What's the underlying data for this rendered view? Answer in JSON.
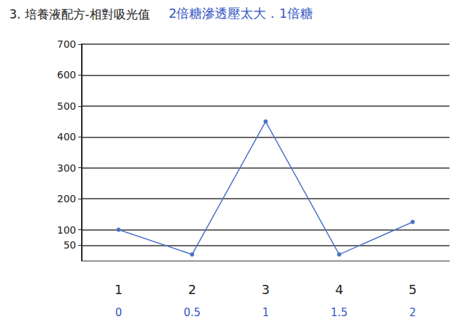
{
  "chart_data": {
    "type": "line",
    "title": "3. 培養液配方-相對吸光值",
    "annotations": [
      "2倍糖滲透壓太大．1倍糖"
    ],
    "categories": [
      "1",
      "2",
      "3",
      "4",
      "5"
    ],
    "x_sublabels": [
      "0",
      "0.5",
      "1",
      "1.5",
      "2"
    ],
    "values": [
      100,
      20,
      450,
      20,
      125
    ],
    "color": "#4a72c8",
    "marker": "circle",
    "ylim": [
      0,
      700
    ],
    "yticks": [
      50,
      100,
      200,
      300,
      400,
      500,
      600,
      700
    ],
    "grid": true
  }
}
